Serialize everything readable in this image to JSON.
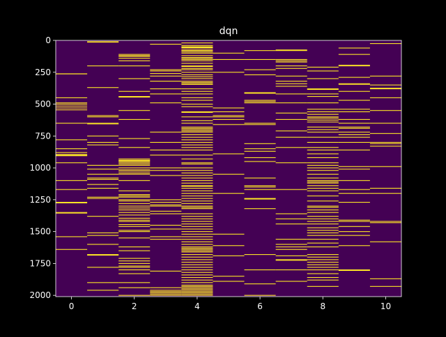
{
  "chart_data": {
    "type": "heatmap",
    "title": "dqn",
    "xlabel": "",
    "ylabel": "",
    "xlim": [
      -0.5,
      10.5
    ],
    "ylim": [
      2010,
      0
    ],
    "xticks": [
      0,
      2,
      4,
      6,
      8,
      10
    ],
    "yticks": [
      0,
      250,
      500,
      750,
      1000,
      1250,
      1500,
      1750,
      2000
    ],
    "num_columns": 11,
    "num_rows": 2010,
    "colors": {
      "background": "#440154",
      "highlight": "#fde725",
      "figure": "#000000",
      "axes": "#ffffff"
    },
    "columns": [
      {
        "col": 0,
        "rows": [
          262,
          263,
          450,
          490,
          500,
          515,
          530,
          545,
          650,
          780,
          850,
          880,
          895,
          900,
          905,
          960,
          1100,
          1170,
          1270,
          1275,
          1350,
          1355,
          1540,
          1640
        ]
      },
      {
        "col": 1,
        "rows": [
          10,
          14,
          200,
          370,
          590,
          600,
          650,
          655,
          750,
          800,
          820,
          980,
          1010,
          1050,
          1080,
          1090,
          1130,
          1160,
          1230,
          1240,
          1380,
          1510,
          1530,
          1600,
          1680,
          1685,
          1780,
          1900,
          1960
        ]
      },
      {
        "col": 2,
        "rows": [
          110,
          120,
          125,
          140,
          160,
          200,
          300,
          400,
          440,
          445,
          550,
          620,
          770,
          840,
          930,
          940,
          945,
          950,
          960,
          970,
          980,
          1000,
          1015,
          1025,
          1040,
          1050,
          1100,
          1180,
          1210,
          1220,
          1230,
          1250,
          1260,
          1280,
          1300,
          1315,
          1330,
          1350,
          1370,
          1395,
          1410,
          1420,
          1445,
          1460,
          1490,
          1500,
          1550,
          1620,
          1650,
          1710,
          1730,
          1750,
          1770,
          1780,
          1800,
          1830,
          1900,
          1940,
          2000
        ]
      },
      {
        "col": 3,
        "rows": [
          30,
          230,
          240,
          260,
          280,
          320,
          380,
          420,
          490,
          720,
          800,
          860,
          900,
          1000,
          1020,
          1060,
          1250,
          1270,
          1290,
          1300,
          1340,
          1360,
          1450,
          1480,
          1540,
          1560,
          1810,
          1940,
          1960,
          1970,
          1980,
          1990,
          2000
        ]
      },
      {
        "col": 4,
        "rows": [
          20,
          40,
          50,
          55,
          60,
          75,
          80,
          90,
          100,
          120,
          135,
          140,
          150,
          160,
          180,
          200,
          205,
          220,
          230,
          250,
          270,
          285,
          300,
          320,
          330,
          340,
          345,
          380,
          400,
          420,
          450,
          470,
          500,
          520,
          560,
          565,
          600,
          630,
          650,
          680,
          690,
          700,
          710,
          720,
          740,
          760,
          780,
          800,
          820,
          840,
          860,
          900,
          930,
          960,
          970,
          1000,
          1020,
          1040,
          1060,
          1080,
          1100,
          1120,
          1140,
          1145,
          1160,
          1180,
          1200,
          1220,
          1240,
          1260,
          1280,
          1300,
          1310,
          1320,
          1360,
          1380,
          1400,
          1420,
          1440,
          1460,
          1480,
          1500,
          1520,
          1540,
          1560,
          1580,
          1600,
          1620,
          1630,
          1640,
          1650,
          1660,
          1680,
          1700,
          1720,
          1740,
          1760,
          1780,
          1800,
          1820,
          1840,
          1860,
          1880,
          1900,
          1920,
          1930,
          1940,
          1950,
          1960,
          1970,
          1980,
          1990,
          2000
        ]
      },
      {
        "col": 5,
        "rows": [
          100,
          150,
          250,
          530,
          560,
          590,
          600,
          620,
          660,
          890,
          1050,
          1200,
          1520,
          1610,
          1690,
          1850,
          1890
        ]
      },
      {
        "col": 6,
        "rows": [
          80,
          150,
          230,
          270,
          410,
          415,
          470,
          480,
          490,
          650,
          660,
          810,
          850,
          870,
          920,
          950,
          1080,
          1140,
          1150,
          1170,
          1240,
          1245,
          1320,
          1680,
          1800,
          1910,
          2000
        ]
      },
      {
        "col": 7,
        "rows": [
          75,
          80,
          150,
          160,
          170,
          200,
          220,
          280,
          320,
          340,
          360,
          420,
          490,
          570,
          620,
          710,
          760,
          840,
          960,
          1170,
          1360,
          1400,
          1440,
          1560,
          1600,
          1620,
          1640,
          1690,
          1720,
          1725,
          1800,
          1890
        ]
      },
      {
        "col": 8,
        "rows": [
          210,
          240,
          300,
          380,
          385,
          420,
          440,
          490,
          540,
          560,
          580,
          600,
          610,
          625,
          640,
          680,
          700,
          720,
          760,
          800,
          840,
          860,
          890,
          920,
          960,
          980,
          1000,
          1020,
          1050,
          1080,
          1100,
          1110,
          1120,
          1140,
          1160,
          1180,
          1220,
          1260,
          1300,
          1310,
          1330,
          1350,
          1380,
          1400,
          1420,
          1440,
          1470,
          1490,
          1510,
          1530,
          1560,
          1590,
          1620,
          1680,
          1700,
          1720,
          1740,
          1760,
          1780,
          1800,
          1830,
          1860,
          1880,
          1930
        ]
      },
      {
        "col": 9,
        "rows": [
          60,
          110,
          195,
          200,
          290,
          340,
          345,
          400,
          470,
          540,
          560,
          620,
          650,
          680,
          690,
          720,
          740,
          760,
          800,
          860,
          990,
          1010,
          1100,
          1170,
          1200,
          1270,
          1410,
          1420,
          1460,
          1500,
          1530,
          1610,
          1800,
          1805
        ]
      },
      {
        "col": 10,
        "rows": [
          25,
          280,
          350,
          375,
          380,
          450,
          550,
          650,
          730,
          800,
          810,
          830,
          990,
          1160,
          1200,
          1420,
          1430,
          1580,
          1870,
          1930
        ]
      }
    ]
  }
}
